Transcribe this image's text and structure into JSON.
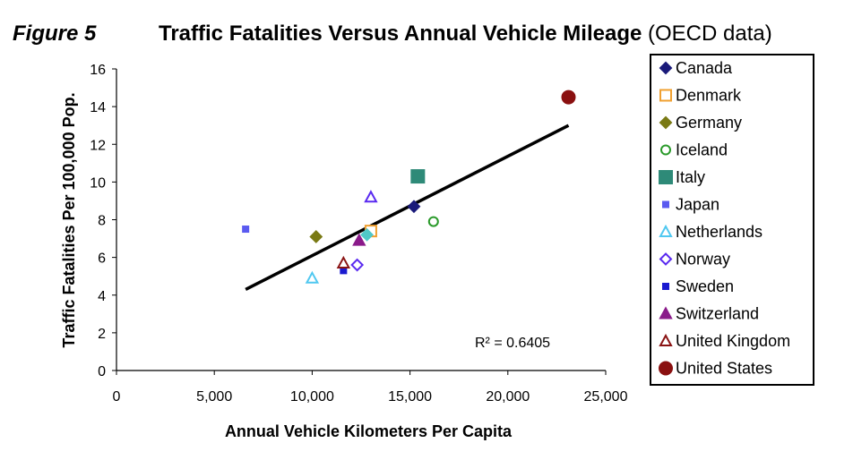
{
  "figure_label": "Figure 5",
  "chart_data": {
    "type": "scatter",
    "title": "Traffic Fatalities Versus Annual Vehicle Mileage",
    "subtitle": "(OECD data)",
    "xlabel": "Annual Vehicle Kilometers Per Capita",
    "ylabel": "Traffic Fatalities Per 100,000 Pop.",
    "xlim": [
      0,
      25000
    ],
    "ylim": [
      0,
      16
    ],
    "x_ticks": [
      0,
      5000,
      10000,
      15000,
      20000,
      25000
    ],
    "x_tick_labels": [
      "0",
      "5,000",
      "10,000",
      "15,000",
      "20,000",
      "25,000"
    ],
    "y_ticks": [
      0,
      2,
      4,
      6,
      8,
      10,
      12,
      14,
      16
    ],
    "y_tick_labels": [
      "0",
      "2",
      "4",
      "6",
      "8",
      "10",
      "12",
      "14",
      "16"
    ],
    "grid": false,
    "legend_position": "right",
    "series": [
      {
        "name": "Canada",
        "marker": "diamond",
        "filled": true,
        "color": "#1a1a7a",
        "x": 15200,
        "y": 8.7
      },
      {
        "name": "Denmark",
        "marker": "square",
        "filled": false,
        "color": "#f0a030",
        "x": 13000,
        "y": 7.4
      },
      {
        "name": "Germany",
        "marker": "diamond",
        "filled": true,
        "color": "#7a7a14",
        "x": 10200,
        "y": 7.1
      },
      {
        "name": "Iceland",
        "marker": "circle",
        "filled": false,
        "color": "#2a9a2a",
        "x": 16200,
        "y": 7.9
      },
      {
        "name": "Italy",
        "marker": "square",
        "filled": true,
        "color": "#2e8a78",
        "x": 15400,
        "y": 10.3
      },
      {
        "name": "Japan",
        "marker": "square-small",
        "filled": true,
        "color": "#5a5af0",
        "x": 6600,
        "y": 7.5
      },
      {
        "name": "Netherlands",
        "marker": "triangle",
        "filled": false,
        "color": "#50c8f0",
        "x": 10000,
        "y": 4.9
      },
      {
        "name": "Norway",
        "marker": "diamond",
        "filled": false,
        "color": "#5a2af0",
        "x": 12300,
        "y": 5.6
      },
      {
        "name": "Sweden",
        "marker": "square-small",
        "filled": true,
        "color": "#1a1ad0",
        "x": 11600,
        "y": 5.3
      },
      {
        "name": "Switzerland",
        "marker": "triangle",
        "filled": true,
        "color": "#8a1a8a",
        "x": 12400,
        "y": 6.9
      },
      {
        "name": "United Kingdom",
        "marker": "triangle",
        "filled": false,
        "color": "#8a1414",
        "x": 11600,
        "y": 5.7
      },
      {
        "name": "United States",
        "marker": "circle",
        "filled": true,
        "color": "#8a1010",
        "x": 23100,
        "y": 14.5
      }
    ],
    "extra_points": [
      {
        "marker": "triangle",
        "filled": false,
        "color": "#5a2af0",
        "x": 13000,
        "y": 9.2
      },
      {
        "marker": "diamond",
        "filled": true,
        "color": "#50c8c8",
        "x": 12800,
        "y": 7.2
      }
    ],
    "trendline": {
      "x": [
        6600,
        23100
      ],
      "y": [
        4.3,
        13.0
      ],
      "color": "#000000"
    },
    "annotation": {
      "text": "R² = 0.6405"
    }
  }
}
